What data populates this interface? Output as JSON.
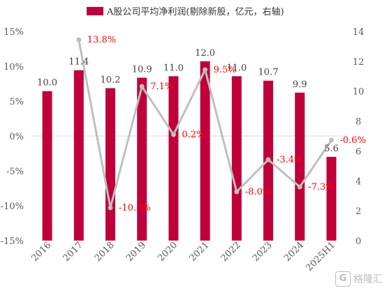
{
  "chart_data": {
    "type": "bar+line",
    "legend": {
      "label": "A股公司平均净利润(剔除新股，亿元，右轴)",
      "placement": "top",
      "color": "#C0003C"
    },
    "categories": [
      "2016",
      "2017",
      "2018",
      "2019",
      "2020",
      "2021",
      "2022",
      "2023",
      "2024",
      "2025H1"
    ],
    "series": [
      {
        "name": "A股公司平均净利润(剔除新股，亿元，右轴)",
        "type": "bar",
        "axis": "right",
        "color": "#C0003C",
        "values": [
          10.0,
          11.4,
          10.2,
          10.9,
          11.0,
          12.0,
          11.0,
          10.7,
          9.9,
          5.6
        ],
        "labels": [
          "10.0",
          "11.4",
          "10.2",
          "10.9",
          "11.0",
          "12.0",
          "11.0",
          "10.7",
          "9.9",
          "5.6"
        ]
      },
      {
        "type": "line",
        "axis": "left",
        "color": "#BFBFBF",
        "values": [
          null,
          13.8,
          -10.3,
          7.1,
          0.2,
          9.5,
          -8.0,
          -3.4,
          -7.3,
          -0.6
        ],
        "labels": [
          "",
          "13.8%",
          "-10.3%",
          "7.1%",
          "0.2%",
          "9.5%",
          "-8.0%",
          "-3.4%",
          "-7.3%",
          "-0.6%"
        ],
        "label_color": "#FF0000"
      }
    ],
    "left_axis": {
      "ylim": [
        -15,
        15
      ],
      "ticks": [
        "15%",
        "10%",
        "5%",
        "0%",
        "-5%",
        "-10%",
        "-15%"
      ]
    },
    "right_axis": {
      "ylim": [
        0,
        14
      ],
      "ticks": [
        "14",
        "12",
        "10",
        "8",
        "6",
        "4",
        "2",
        "0"
      ]
    },
    "grid": false
  },
  "watermark": {
    "text": "格隆汇",
    "icon": "G-logo"
  }
}
